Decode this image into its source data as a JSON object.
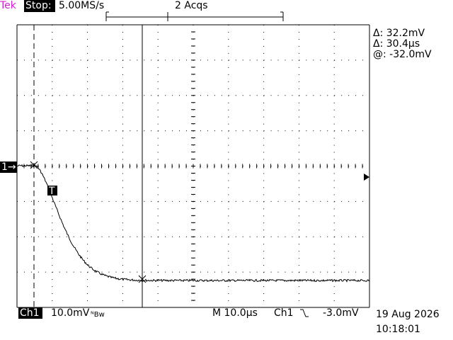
{
  "header": {
    "brand": "Tek",
    "state": "Stop:",
    "sample_rate": "5.00MS/s",
    "acquisitions": "2 Acqs"
  },
  "readouts": {
    "delta_v": "Δ: 32.2mV",
    "delta_t": "Δ: 30.4µs",
    "at": "@: -32.0mV"
  },
  "footer": {
    "channel": "Ch1",
    "volts_div": "10.0mV",
    "bw": "ᴺBw",
    "time_div": "M 10.0µs",
    "trig_channel": "Ch1",
    "trig_level": "-3.0mV",
    "date": "19 Aug 2026",
    "time": "10:18:01"
  },
  "markers": {
    "channel": "1→",
    "trigger": "T"
  }
}
